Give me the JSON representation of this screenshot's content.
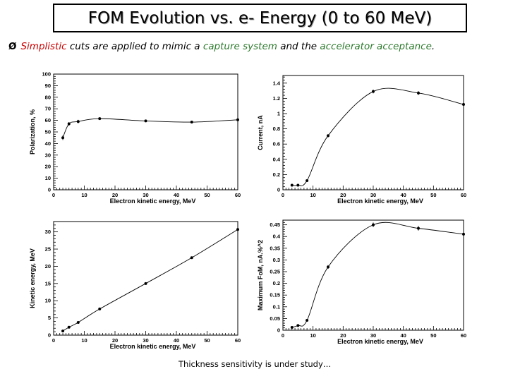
{
  "header": {
    "title": "FOM Evolution vs. e- Energy (0 to 60 MeV)",
    "bullet": {
      "arrow": "Ø",
      "p1": "Simplistic",
      "p2": " cuts are applied to mimic a ",
      "p3": "capture system",
      "p4": " and the ",
      "p5": "accelerator acceptance",
      "p6": "."
    }
  },
  "footnote": "Thickness sensitivity is under study…",
  "chart_data": [
    {
      "type": "line",
      "xlabel": "Electron kinetic energy, MeV",
      "ylabel": "Polarization, %",
      "xlim": [
        0,
        60
      ],
      "ylim": [
        0,
        100
      ],
      "xticks": [
        0,
        10,
        20,
        30,
        40,
        50,
        60
      ],
      "xticklabels": [
        "0",
        "10",
        "20",
        "30",
        "40",
        "50",
        "60"
      ],
      "yticks": [
        0,
        10,
        20,
        30,
        40,
        50,
        60,
        70,
        80,
        90,
        100
      ],
      "yticklabels": [
        "0",
        "10",
        "20",
        "30",
        "40",
        "50",
        "60",
        "70",
        "80",
        "90",
        "100"
      ],
      "x": [
        3,
        5,
        8,
        15,
        30,
        45,
        60
      ],
      "y": [
        45,
        57,
        59,
        61.5,
        59.5,
        58.5,
        60.5
      ],
      "yerr": [
        2,
        1.5,
        1.5,
        1,
        1,
        1,
        1
      ],
      "grid": false
    },
    {
      "type": "line",
      "xlabel": "Electron kinetic energy, MeV",
      "ylabel": "Current, nA",
      "xlim": [
        0,
        60
      ],
      "ylim": [
        0,
        1.5
      ],
      "xticks": [
        0,
        10,
        20,
        30,
        40,
        50,
        60
      ],
      "xticklabels": [
        "0",
        "10",
        "20",
        "30",
        "40",
        "50",
        "60"
      ],
      "yticks": [
        0,
        0.2,
        0.4,
        0.6,
        0.8,
        1,
        1.2,
        1.4
      ],
      "yticklabels": [
        "0",
        "0.2",
        "0.4",
        "0.6",
        "0.8",
        "1",
        "1.2",
        "1.4"
      ],
      "x": [
        3,
        5,
        8,
        15,
        30,
        45,
        60
      ],
      "y": [
        0.06,
        0.06,
        0.12,
        0.71,
        1.29,
        1.27,
        1.12
      ],
      "yerr": [
        0.005,
        0.005,
        0.01,
        0.02,
        0.025,
        0.025,
        0.03
      ],
      "grid": false
    },
    {
      "type": "line",
      "xlabel": "Electron kinetic energy, MeV",
      "ylabel": "Kinetic energy, MeV",
      "xlim": [
        0,
        60
      ],
      "ylim": [
        0,
        33
      ],
      "xticks": [
        0,
        10,
        20,
        30,
        40,
        50,
        60
      ],
      "xticklabels": [
        "0",
        "10",
        "20",
        "30",
        "40",
        "50",
        "60"
      ],
      "yticks": [
        0,
        5,
        10,
        15,
        20,
        25,
        30
      ],
      "yticklabels": [
        "0",
        "5",
        "10",
        "15",
        "20",
        "25",
        "30"
      ],
      "x": [
        3,
        5,
        8,
        15,
        30,
        45,
        60
      ],
      "y": [
        1.2,
        2.3,
        3.7,
        7.6,
        15,
        22.5,
        30.7
      ],
      "yerr": [
        0,
        0,
        0,
        0,
        0,
        0,
        0
      ],
      "grid": false
    },
    {
      "type": "line",
      "xlabel": "Electron kinetic energy, MeV",
      "ylabel": "Maximum FoM, nA.%^2",
      "xlim": [
        0,
        60
      ],
      "ylim": [
        0,
        0.47
      ],
      "xticks": [
        0,
        10,
        20,
        30,
        40,
        50,
        60
      ],
      "xticklabels": [
        "0",
        "10",
        "20",
        "30",
        "40",
        "50",
        "60"
      ],
      "yticks": [
        0,
        0.05,
        0.1,
        0.15,
        0.2,
        0.25,
        0.3,
        0.35,
        0.4,
        0.45
      ],
      "yticklabels": [
        "0",
        "0.05",
        "0.1",
        "0.15",
        "0.2",
        "0.25",
        "0.3",
        "0.35",
        "0.4",
        "0.45"
      ],
      "x": [
        3,
        5,
        8,
        15,
        30,
        45,
        60
      ],
      "y": [
        0.012,
        0.02,
        0.042,
        0.27,
        0.45,
        0.435,
        0.41
      ],
      "yerr": [
        0.002,
        0.002,
        0.004,
        0.008,
        0.01,
        0.01,
        0.012
      ],
      "grid": false
    }
  ]
}
